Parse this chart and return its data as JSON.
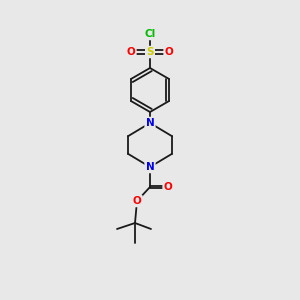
{
  "bg_color": "#e8e8e8",
  "bond_color": "#1a1a1a",
  "bond_width": 1.3,
  "atom_colors": {
    "Cl": "#00bb00",
    "S": "#cccc00",
    "O": "#ff0000",
    "N": "#0000ee",
    "C": "#1a1a1a"
  },
  "font_size_atoms": 7.5,
  "fig_width": 3.0,
  "fig_height": 3.0,
  "dpi": 100
}
